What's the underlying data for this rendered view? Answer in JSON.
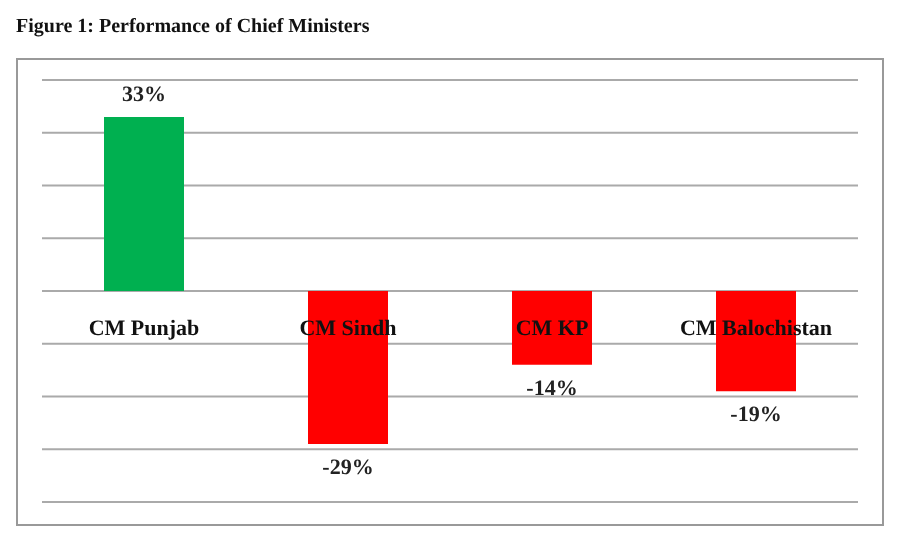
{
  "chart_data": {
    "type": "bar",
    "title": "Figure 1: Performance of Chief Ministers",
    "categories": [
      "CM Punjab",
      "CM Sindh",
      "CM KP",
      "CM Balochistan"
    ],
    "values": [
      33,
      -29,
      -14,
      -19
    ],
    "colors": [
      "#00b050",
      "#ff0000",
      "#ff0000",
      "#ff0000"
    ],
    "value_labels": [
      "33%",
      "-29%",
      "-14%",
      "-19%"
    ],
    "ylim": [
      -40,
      40
    ],
    "yticks": [
      {
        "value": -40,
        "label": null
      },
      {
        "value": -30,
        "label": null
      },
      {
        "value": -20,
        "label": null
      },
      {
        "value": -10,
        "label": null
      },
      {
        "value": 0,
        "label": null
      },
      {
        "value": 10,
        "label": null
      },
      {
        "value": 20,
        "label": null
      },
      {
        "value": 30,
        "label": null
      },
      {
        "value": 40,
        "label": null
      }
    ],
    "grid": "y",
    "tick_labels": "x"
  }
}
